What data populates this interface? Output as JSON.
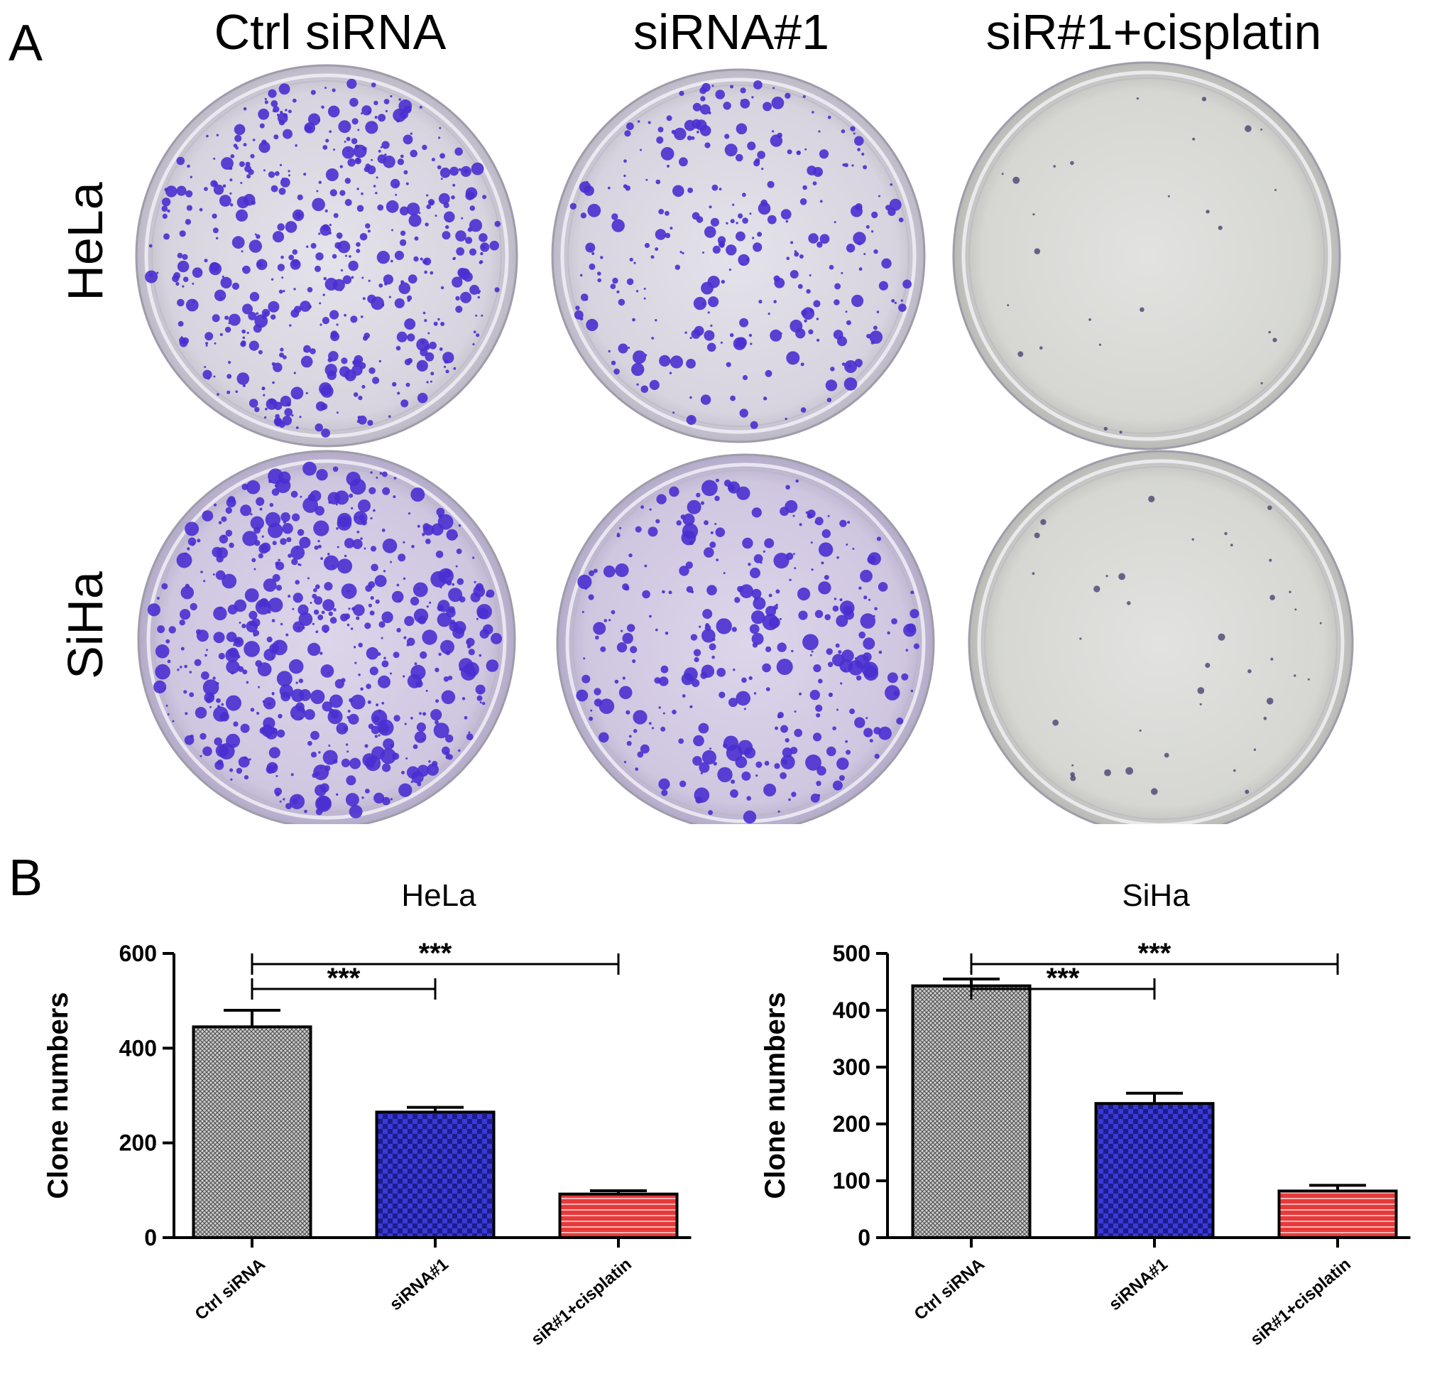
{
  "panels": {
    "a": "A",
    "b": "B"
  },
  "photo": {
    "columns": [
      "Ctrl siRNA",
      "siRNA#1",
      "siR#1+cisplatin"
    ],
    "rows": [
      "HeLa",
      "SiHa"
    ],
    "colony_color": "#4a2fd0",
    "dish_color": "#d9d6e2"
  },
  "chart_data": [
    {
      "type": "bar",
      "title": "HeLa",
      "ylabel": "Clone numbers",
      "xlabel": "",
      "categories": [
        "Ctrl siRNA",
        "siRNA#1",
        "siR#1+cisplatin"
      ],
      "values": [
        445,
        265,
        92
      ],
      "errors": [
        35,
        10,
        7
      ],
      "ylim": [
        0,
        600
      ],
      "yticks": [
        "0",
        "200",
        "400",
        "600"
      ],
      "significance": [
        {
          "from": "Ctrl siRNA",
          "to": "siRNA#1",
          "label": "***"
        },
        {
          "from": "Ctrl siRNA",
          "to": "siR#1+cisplatin",
          "label": "***"
        }
      ],
      "bar_colors": [
        "#a8a8a8",
        "#3a3ad8",
        "#e63a3a"
      ],
      "grid": false
    },
    {
      "type": "bar",
      "title": "SiHa",
      "ylabel": "Clone numbers",
      "xlabel": "",
      "categories": [
        "Ctrl siRNA",
        "siRNA#1",
        "siR#1+cisplatin"
      ],
      "values": [
        443,
        236,
        82
      ],
      "errors": [
        12,
        18,
        10
      ],
      "ylim": [
        0,
        500
      ],
      "yticks": [
        "0",
        "100",
        "200",
        "300",
        "400",
        "500"
      ],
      "significance": [
        {
          "from": "Ctrl siRNA",
          "to": "siRNA#1",
          "label": "***"
        },
        {
          "from": "Ctrl siRNA",
          "to": "siR#1+cisplatin",
          "label": "***"
        }
      ],
      "bar_colors": [
        "#a8a8a8",
        "#3a3ad8",
        "#e63a3a"
      ],
      "grid": false
    }
  ]
}
